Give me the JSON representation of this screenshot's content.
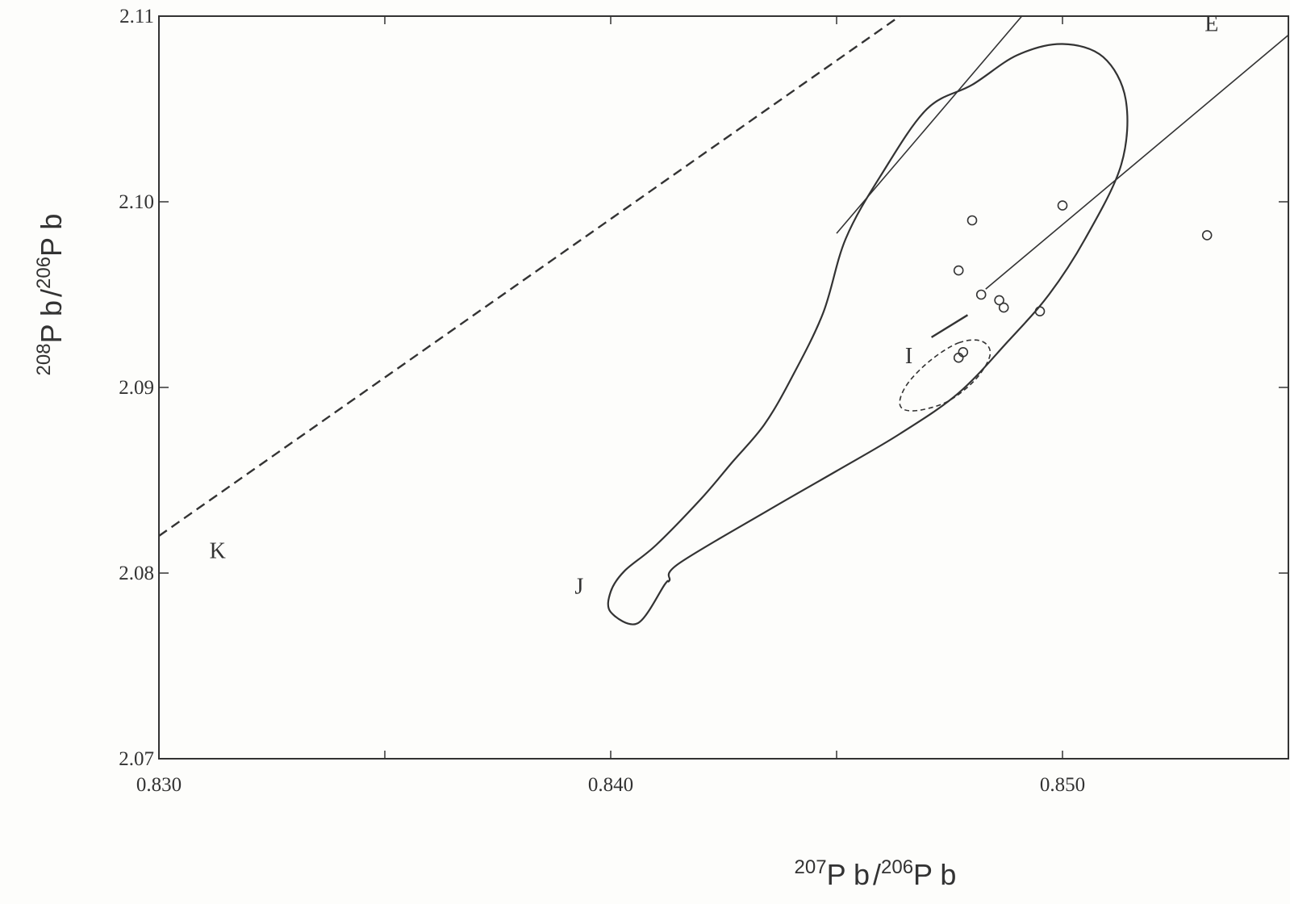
{
  "chart_data": {
    "type": "scatter",
    "xlabel": {
      "mass1": "207",
      "el1": "P b",
      "sep": "/",
      "mass2": "206",
      "el2": "P b"
    },
    "ylabel": {
      "mass1": "208",
      "el1": "P b",
      "sep": "/",
      "mass2": "206",
      "el2": "P b"
    },
    "xlim": [
      0.83,
      0.855
    ],
    "ylim": [
      2.07,
      2.11
    ],
    "xticks": [
      0.83,
      0.835,
      0.84,
      0.845,
      0.85
    ],
    "xtick_labels": [
      "0.830",
      "",
      "0.840",
      "",
      "0.850"
    ],
    "yticks": [
      2.07,
      2.08,
      2.09,
      2.1,
      2.11
    ],
    "ytick_labels": [
      "2.07",
      "2.08",
      "2.09",
      "2.10",
      "2.11"
    ],
    "grid": false,
    "region_labels": [
      {
        "text": "K",
        "x": 0.8313,
        "y": 2.0808
      },
      {
        "text": "J",
        "x": 0.8393,
        "y": 2.0789
      },
      {
        "text": "I",
        "x": 0.8466,
        "y": 2.0913
      },
      {
        "text": "E",
        "x": 0.8533,
        "y": 2.1092
      }
    ],
    "series": [
      {
        "kind": "points",
        "marker": "open-circle",
        "points": [
          [
            0.848,
            2.099
          ],
          [
            0.8477,
            2.0963
          ],
          [
            0.8482,
            2.095
          ],
          [
            0.8486,
            2.0947
          ],
          [
            0.8487,
            2.0943
          ],
          [
            0.8477,
            2.0916
          ],
          [
            0.8478,
            2.0919
          ],
          [
            0.8495,
            2.0941
          ],
          [
            0.85,
            2.0998
          ],
          [
            0.8532,
            2.0982
          ]
        ]
      },
      {
        "kind": "line",
        "style": "dashed",
        "points": [
          [
            0.83,
            2.082
          ],
          [
            0.8464,
            2.11
          ]
        ]
      },
      {
        "kind": "line",
        "style": "solid-thin",
        "points": [
          [
            0.845,
            2.0983
          ],
          [
            0.8491,
            2.11
          ]
        ]
      },
      {
        "kind": "line",
        "style": "solid-thin",
        "points": [
          [
            0.8483,
            2.0953
          ],
          [
            0.8555,
            2.11
          ]
        ]
      },
      {
        "kind": "line",
        "style": "solid-medium",
        "points": [
          [
            0.8471,
            2.0927
          ],
          [
            0.8479,
            2.0939
          ]
        ]
      },
      {
        "kind": "field-outline",
        "style": "solid",
        "closed": true,
        "points": [
          [
            0.8406,
            2.0773
          ],
          [
            0.84,
            2.0779
          ],
          [
            0.84,
            2.079
          ],
          [
            0.8403,
            2.0801
          ],
          [
            0.841,
            2.0815
          ],
          [
            0.842,
            2.084
          ],
          [
            0.8427,
            2.086
          ],
          [
            0.8434,
            2.088
          ],
          [
            0.844,
            2.0905
          ],
          [
            0.8447,
            2.094
          ],
          [
            0.8452,
            2.098
          ],
          [
            0.846,
            2.1015
          ],
          [
            0.847,
            2.105
          ],
          [
            0.848,
            2.1063
          ],
          [
            0.849,
            2.1079
          ],
          [
            0.85,
            2.1085
          ],
          [
            0.8509,
            2.1078
          ],
          [
            0.8514,
            2.1055
          ],
          [
            0.8513,
            2.102
          ],
          [
            0.8505,
            2.098
          ],
          [
            0.8497,
            2.095
          ],
          [
            0.8488,
            2.0925
          ],
          [
            0.8477,
            2.0897
          ],
          [
            0.8464,
            2.0875
          ],
          [
            0.845,
            2.0855
          ],
          [
            0.8435,
            2.0834
          ],
          [
            0.8415,
            2.0805
          ],
          [
            0.8413,
            2.0796
          ],
          [
            0.8412,
            2.0794
          ]
        ]
      },
      {
        "kind": "field-outline",
        "style": "dashed",
        "closed": true,
        "points": [
          [
            0.8477,
            2.0924
          ],
          [
            0.8482,
            2.0925
          ],
          [
            0.8484,
            2.0918
          ],
          [
            0.8481,
            2.0905
          ],
          [
            0.8475,
            2.0893
          ],
          [
            0.8469,
            2.0888
          ],
          [
            0.8465,
            2.0888
          ],
          [
            0.8464,
            2.0893
          ],
          [
            0.8466,
            2.0903
          ],
          [
            0.8471,
            2.0915
          ]
        ]
      }
    ]
  }
}
